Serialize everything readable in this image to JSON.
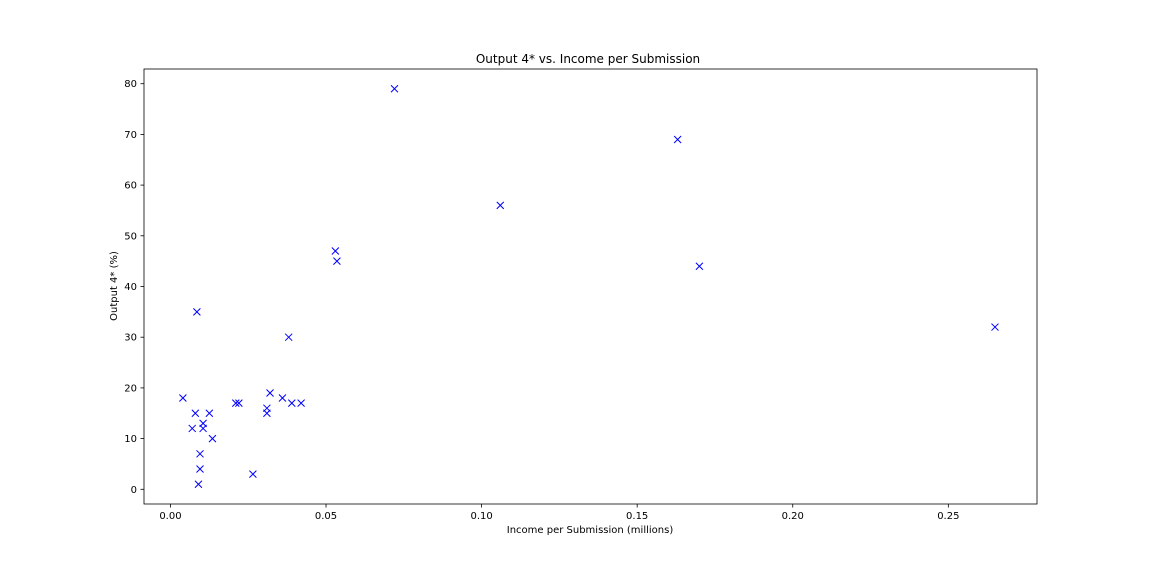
{
  "chart_data": {
    "type": "scatter",
    "title": "Output 4* vs. Income per Submission",
    "xlabel": "Income per Submission (millions)",
    "ylabel": "Output 4* (%)",
    "xlim": [
      -0.0085,
      0.2785
    ],
    "ylim": [
      -2.9,
      82.9
    ],
    "xticks": [
      0.0,
      0.05,
      0.1,
      0.15,
      0.2,
      0.25
    ],
    "xtick_labels": [
      "0.00",
      "0.05",
      "0.10",
      "0.15",
      "0.20",
      "0.25"
    ],
    "yticks": [
      0,
      10,
      20,
      30,
      40,
      50,
      60,
      70,
      80
    ],
    "ytick_labels": [
      "0",
      "10",
      "20",
      "30",
      "40",
      "50",
      "60",
      "70",
      "80"
    ],
    "grid": false,
    "marker": "x",
    "color": "#0000ff",
    "points": [
      {
        "x": 0.072,
        "y": 79
      },
      {
        "x": 0.163,
        "y": 69
      },
      {
        "x": 0.106,
        "y": 56
      },
      {
        "x": 0.053,
        "y": 47
      },
      {
        "x": 0.0535,
        "y": 45
      },
      {
        "x": 0.17,
        "y": 44
      },
      {
        "x": 0.0085,
        "y": 35
      },
      {
        "x": 0.265,
        "y": 32
      },
      {
        "x": 0.038,
        "y": 30
      },
      {
        "x": 0.032,
        "y": 19
      },
      {
        "x": 0.004,
        "y": 18
      },
      {
        "x": 0.036,
        "y": 18
      },
      {
        "x": 0.021,
        "y": 17
      },
      {
        "x": 0.022,
        "y": 17
      },
      {
        "x": 0.039,
        "y": 17
      },
      {
        "x": 0.042,
        "y": 17
      },
      {
        "x": 0.031,
        "y": 16
      },
      {
        "x": 0.008,
        "y": 15
      },
      {
        "x": 0.0125,
        "y": 15
      },
      {
        "x": 0.031,
        "y": 15
      },
      {
        "x": 0.0105,
        "y": 13
      },
      {
        "x": 0.007,
        "y": 12
      },
      {
        "x": 0.0105,
        "y": 12
      },
      {
        "x": 0.0135,
        "y": 10
      },
      {
        "x": 0.0095,
        "y": 7
      },
      {
        "x": 0.0095,
        "y": 4
      },
      {
        "x": 0.0265,
        "y": 3
      },
      {
        "x": 0.009,
        "y": 1
      }
    ]
  }
}
